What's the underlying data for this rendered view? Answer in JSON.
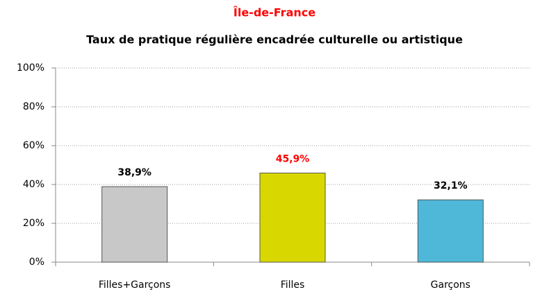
{
  "chart_data": {
    "type": "bar",
    "title": "Île-de-France",
    "subtitle": "Taux de pratique régulière encadrée culturelle ou artistique",
    "categories": [
      "Filles+Garçons",
      "Filles",
      "Garçons"
    ],
    "values": [
      38.9,
      45.9,
      32.1
    ],
    "value_labels": [
      "38,9%",
      "45,9%",
      "32,1%"
    ],
    "colors": [
      "#c8c8c8",
      "#d8d800",
      "#4fb8d8"
    ],
    "label_colors": [
      "#000000",
      "#ff0000",
      "#000000"
    ],
    "ylim": [
      0,
      100
    ],
    "yticks": [
      {
        "value": 0,
        "label": "0%"
      },
      {
        "value": 20,
        "label": "20%"
      },
      {
        "value": 40,
        "label": "40%"
      },
      {
        "value": 60,
        "label": "60%"
      },
      {
        "value": 80,
        "label": "80%"
      },
      {
        "value": 100,
        "label": "100%"
      }
    ],
    "grid": true
  }
}
